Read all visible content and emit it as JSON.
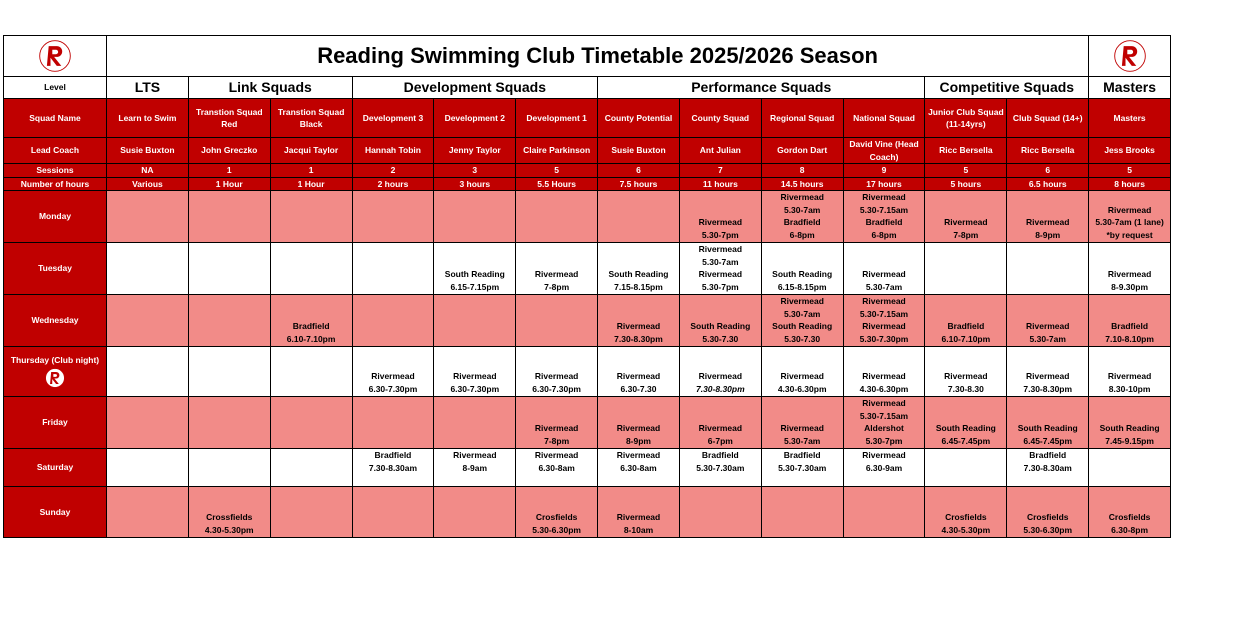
{
  "title": "Reading Swimming Club Timetable 2025/2026 Season",
  "level_label": "Level",
  "groups": [
    "LTS",
    "Link Squads",
    "Development Squads",
    "Performance Squads",
    "Competitive Squads",
    "Masters"
  ],
  "row_labels": [
    "Squad Name",
    "Lead Coach",
    "Sessions",
    "Number of hours"
  ],
  "squads": [
    "Learn to Swim",
    "Transtion Squad Red",
    "Transtion Squad Black",
    "Development 3",
    "Development 2",
    "Development 1",
    "County Potential",
    "County Squad",
    "Regional Squad",
    "National Squad",
    "Junior Club Squad (11-14yrs)",
    "Club Squad (14+)",
    "Masters"
  ],
  "coaches": [
    "Susie Buxton",
    "John Greczko",
    "Jacqui Taylor",
    "Hannah Tobin",
    "Jenny Taylor",
    "Claire Parkinson",
    "Susie Buxton",
    "Ant Julian",
    "Gordon Dart",
    "David Vine (Head Coach)",
    "Ricc Bersella",
    "Ricc Bersella",
    "Jess Brooks"
  ],
  "sessions": [
    "NA",
    "1",
    "1",
    "2",
    "3",
    "5",
    "6",
    "7",
    "8",
    "9",
    "5",
    "6",
    "5"
  ],
  "hours": [
    "Various",
    "1 Hour",
    "1 Hour",
    "2 hours",
    "3 hours",
    "5.5 Hours",
    "7.5 hours",
    "11 hours",
    "14.5 hours",
    "17 hours",
    "5 hours",
    "6.5 hours",
    "8 hours"
  ],
  "days": [
    {
      "day": "Monday",
      "cells": [
        [],
        [],
        [],
        [],
        [],
        [],
        [],
        [
          "Rivermead",
          "5.30-7pm"
        ],
        [
          "Rivermead",
          "5.30-7am",
          "Bradfield",
          "6-8pm"
        ],
        [
          "Rivermead",
          "5.30-7.15am",
          "Bradfield",
          "6-8pm"
        ],
        [
          "Rivermead",
          "7-8pm"
        ],
        [
          "Rivermead",
          "8-9pm"
        ],
        [
          "Rivermead",
          "5.30-7am (1 lane)",
          "*by request"
        ]
      ]
    },
    {
      "day": "Tuesday",
      "cells": [
        [],
        [],
        [],
        [],
        [
          "South Reading",
          "6.15-7.15pm"
        ],
        [
          "Rivermead",
          "7-8pm"
        ],
        [
          "South Reading",
          "7.15-8.15pm"
        ],
        [
          "Rivermead",
          "5.30-7am",
          "Rivermead",
          "5.30-7pm"
        ],
        [
          "South Reading",
          "6.15-8.15pm"
        ],
        [
          "Rivermead",
          "5.30-7am"
        ],
        [],
        [],
        [
          "Rivermead",
          "8-9.30pm"
        ]
      ]
    },
    {
      "day": "Wednesday",
      "cells": [
        [],
        [],
        [
          "Bradfield",
          "6.10-7.10pm"
        ],
        [],
        [],
        [],
        [
          "Rivermead",
          "7.30-8.30pm"
        ],
        [
          "South Reading",
          "5.30-7.30"
        ],
        [
          "Rivermead",
          "5.30-7am",
          "South Reading",
          "5.30-7.30"
        ],
        [
          "Rivermead",
          "5.30-7.15am",
          "Rivermead",
          "5.30-7.30pm"
        ],
        [
          "Bradfield",
          "6.10-7.10pm"
        ],
        [
          "Rivermead",
          "5.30-7am"
        ],
        [
          "Bradfield",
          "7.10-8.10pm"
        ]
      ]
    },
    {
      "day": "Thursday (Club night)",
      "cells": [
        [],
        [],
        [],
        [
          "Rivermead",
          "6.30-7.30pm"
        ],
        [
          "Rivermead",
          "6.30-7.30pm"
        ],
        [
          "Rivermead",
          "6.30-7.30pm"
        ],
        [
          "Rivermead",
          "6.30-7.30"
        ],
        [
          "Rivermead",
          "7.30-8.30pm"
        ],
        [
          "Rivermead",
          "4.30-6.30pm"
        ],
        [
          "Rivermead",
          "4.30-6.30pm"
        ],
        [
          "Rivermead",
          "7.30-8.30"
        ],
        [
          "Rivermead",
          "7.30-8.30pm"
        ],
        [
          "Rivermead",
          "8.30-10pm"
        ]
      ]
    },
    {
      "day": "Friday",
      "cells": [
        [],
        [],
        [],
        [],
        [],
        [
          "Rivermead",
          "7-8pm"
        ],
        [
          "Rivermead",
          "8-9pm"
        ],
        [
          "Rivermead",
          "6-7pm"
        ],
        [
          "Rivermead",
          "5.30-7am"
        ],
        [
          "Rivermead",
          "5.30-7.15am",
          "Aldershot",
          "5.30-7pm"
        ],
        [
          "South Reading",
          "6.45-7.45pm"
        ],
        [
          "South Reading",
          "6.45-7.45pm"
        ],
        [
          "South Reading",
          "7.45-9.15pm"
        ]
      ]
    },
    {
      "day": "Saturday",
      "cells": [
        [],
        [],
        [],
        [
          "Bradfield",
          "7.30-8.30am"
        ],
        [
          "Rivermead",
          "8-9am"
        ],
        [
          "Rivermead",
          "6.30-8am"
        ],
        [
          "Rivermead",
          "6.30-8am"
        ],
        [
          "Bradfield",
          "5.30-7.30am"
        ],
        [
          "Bradfield",
          "5.30-7.30am"
        ],
        [
          "Rivermead",
          "6.30-9am"
        ],
        [],
        [
          "Bradfield",
          "7.30-8.30am"
        ],
        []
      ]
    },
    {
      "day": "Sunday",
      "cells": [
        [],
        [
          "Crossfields",
          "4.30-5.30pm"
        ],
        [],
        [],
        [],
        [
          "Crosfields",
          "5.30-6.30pm"
        ],
        [
          "Rivermead",
          "8-10am"
        ],
        [],
        [],
        [],
        [
          "Crosfields",
          "4.30-5.30pm"
        ],
        [
          "Crosfields",
          "5.30-6.30pm"
        ],
        [
          "Crosfields",
          "6.30-8pm"
        ]
      ]
    }
  ]
}
